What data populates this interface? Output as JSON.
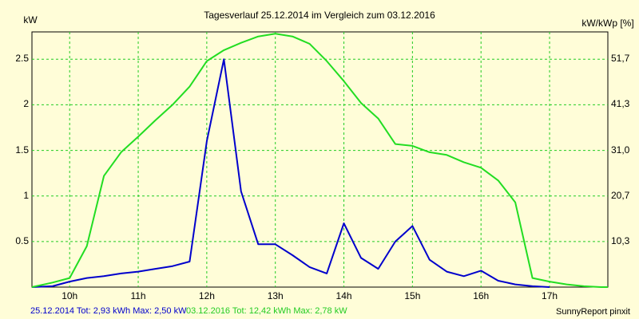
{
  "header": {
    "title": "Tagesverlauf 25.12.2014 im Vergleich zum 03.12.2016",
    "left_unit": "kW",
    "right_unit": "kW/kWp [%]"
  },
  "footer": {
    "series1_label": "25.12.2014 Tot: 2,93 kWh Max: 2,50 kW",
    "series2_label": "03.12.2016 Tot: 12,42 kWh Max: 2,78 kW",
    "credit": "SunnyReport pinxit"
  },
  "colors": {
    "background": "#fffdd8",
    "grid": "#22cc22",
    "series1": "#0000cc",
    "series2": "#22dd22"
  },
  "chart_data": {
    "type": "line",
    "title": "Tagesverlauf 25.12.2014 im Vergleich zum 03.12.2016",
    "xlabel": "",
    "ylabel": "kW",
    "y2label": "kW/kWp [%]",
    "xlim": [
      9.45,
      17.85
    ],
    "ylim": [
      0,
      2.8
    ],
    "x_ticks": [
      10,
      11,
      12,
      13,
      14,
      15,
      16,
      17
    ],
    "x_tick_labels": [
      "10h",
      "11h",
      "12h",
      "13h",
      "14h",
      "15h",
      "16h",
      "17h"
    ],
    "y_ticks": [
      0.5,
      1,
      1.5,
      2,
      2.5
    ],
    "y_tick_labels": [
      "0.5",
      "1",
      "1.5",
      "2",
      "2.5"
    ],
    "y2_ticks": [
      0.5,
      1,
      1.5,
      2,
      2.5
    ],
    "y2_tick_labels": [
      "10,3",
      "20,7",
      "31,0",
      "41,3",
      "51,7"
    ],
    "grid": true,
    "series": [
      {
        "name": "25.12.2014",
        "color": "#0000cc",
        "points": [
          [
            9.45,
            0
          ],
          [
            9.75,
            0.01
          ],
          [
            10.0,
            0.06
          ],
          [
            10.25,
            0.1
          ],
          [
            10.5,
            0.12
          ],
          [
            10.75,
            0.15
          ],
          [
            11.0,
            0.17
          ],
          [
            11.25,
            0.2
          ],
          [
            11.5,
            0.23
          ],
          [
            11.75,
            0.28
          ],
          [
            12.0,
            1.6
          ],
          [
            12.25,
            2.5
          ],
          [
            12.5,
            1.05
          ],
          [
            12.75,
            0.47
          ],
          [
            13.0,
            0.47
          ],
          [
            13.25,
            0.35
          ],
          [
            13.5,
            0.22
          ],
          [
            13.75,
            0.15
          ],
          [
            14.0,
            0.7
          ],
          [
            14.25,
            0.32
          ],
          [
            14.5,
            0.2
          ],
          [
            14.75,
            0.5
          ],
          [
            15.0,
            0.67
          ],
          [
            15.25,
            0.3
          ],
          [
            15.5,
            0.17
          ],
          [
            15.75,
            0.12
          ],
          [
            16.0,
            0.18
          ],
          [
            16.25,
            0.07
          ],
          [
            16.5,
            0.03
          ],
          [
            16.75,
            0.01
          ],
          [
            17.0,
            0
          ]
        ]
      },
      {
        "name": "03.12.2016",
        "color": "#22dd22",
        "points": [
          [
            9.45,
            0
          ],
          [
            9.75,
            0.05
          ],
          [
            10.0,
            0.1
          ],
          [
            10.25,
            0.45
          ],
          [
            10.5,
            1.22
          ],
          [
            10.75,
            1.48
          ],
          [
            11.0,
            1.65
          ],
          [
            11.25,
            1.83
          ],
          [
            11.5,
            2.0
          ],
          [
            11.75,
            2.2
          ],
          [
            12.0,
            2.48
          ],
          [
            12.25,
            2.6
          ],
          [
            12.5,
            2.68
          ],
          [
            12.75,
            2.75
          ],
          [
            13.0,
            2.78
          ],
          [
            13.25,
            2.75
          ],
          [
            13.5,
            2.67
          ],
          [
            13.75,
            2.48
          ],
          [
            14.0,
            2.26
          ],
          [
            14.25,
            2.02
          ],
          [
            14.5,
            1.85
          ],
          [
            14.75,
            1.57
          ],
          [
            15.0,
            1.55
          ],
          [
            15.25,
            1.48
          ],
          [
            15.5,
            1.45
          ],
          [
            15.75,
            1.37
          ],
          [
            16.0,
            1.31
          ],
          [
            16.25,
            1.17
          ],
          [
            16.5,
            0.93
          ],
          [
            16.75,
            0.1
          ],
          [
            17.0,
            0.06
          ],
          [
            17.25,
            0.03
          ],
          [
            17.5,
            0.01
          ],
          [
            17.75,
            0
          ],
          [
            17.85,
            0
          ]
        ]
      }
    ]
  }
}
